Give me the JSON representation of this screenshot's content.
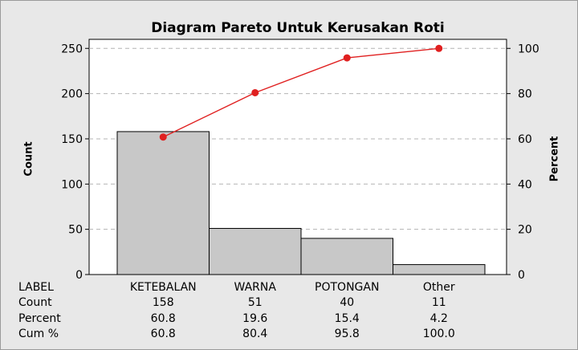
{
  "chart_data": {
    "type": "bar",
    "title": "Diagram Pareto Untuk Kerusakan Roti",
    "ylabel": "Count",
    "y2label": "Percent",
    "categories": [
      "KETEBALAN",
      "WARNA",
      "POTONGAN",
      "Other"
    ],
    "values": [
      158,
      51,
      40,
      11
    ],
    "ylim": [
      0,
      260
    ],
    "yticks": [
      0,
      50,
      100,
      150,
      200,
      250
    ],
    "y2lim": [
      0,
      104
    ],
    "y2ticks": [
      0,
      20,
      40,
      60,
      80,
      100
    ],
    "cumulative_line": [
      60.8,
      80.4,
      95.8,
      100.0
    ],
    "grid": true,
    "line_color": "#e02020",
    "bar_color": "#c8c8c8",
    "table": {
      "row_labels": {
        "label": "LABEL",
        "count": "Count",
        "percent": "Percent",
        "cum": "Cum %"
      },
      "count": [
        "158",
        "51",
        "40",
        "11"
      ],
      "percent": [
        "60.8",
        "19.6",
        "15.4",
        "4.2"
      ],
      "cum": [
        "60.8",
        "80.4",
        "95.8",
        "100.0"
      ]
    }
  }
}
